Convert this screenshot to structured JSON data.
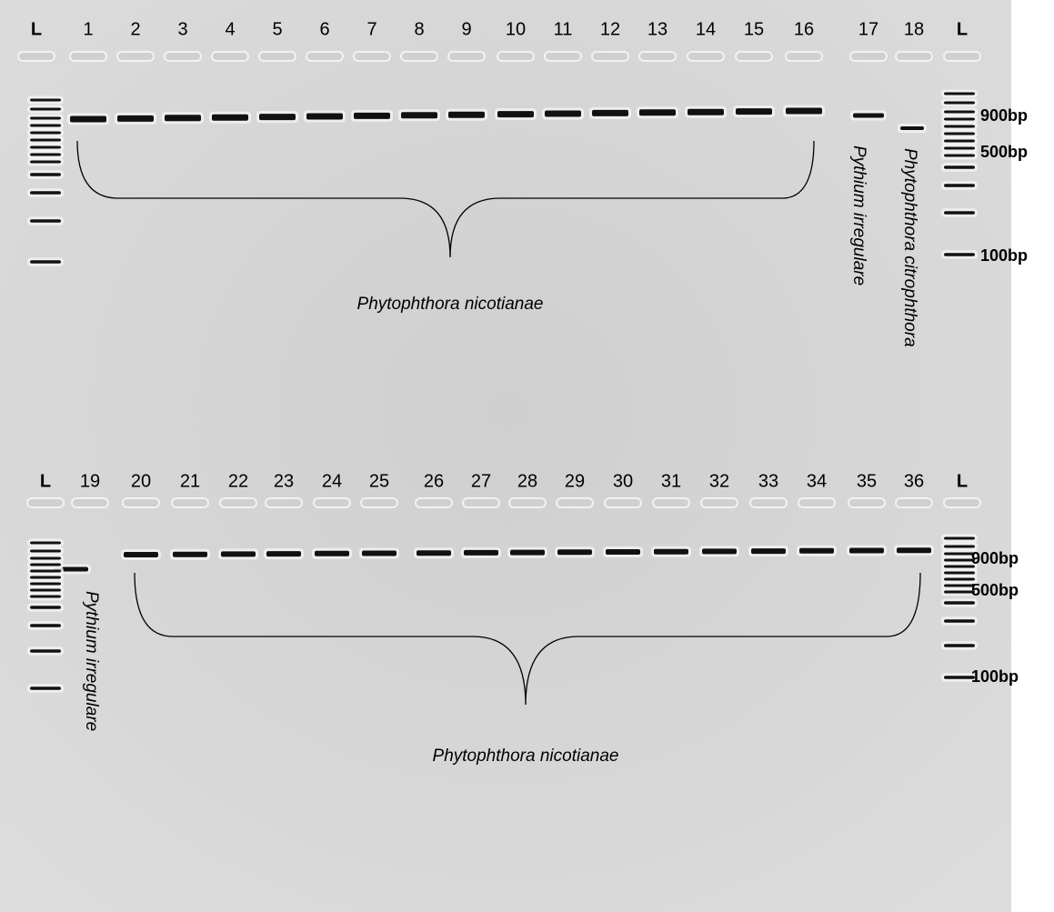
{
  "top": {
    "lanes": [
      "L",
      "1",
      "2",
      "3",
      "4",
      "5",
      "6",
      "7",
      "8",
      "9",
      "10",
      "11",
      "12",
      "13",
      "14",
      "15",
      "16",
      "17",
      "18",
      "L"
    ],
    "markers": [
      "900bp",
      "500bp",
      "100bp"
    ],
    "group_label": "Phytophthora nicotianae",
    "side_labels": [
      "Pythium irregulare",
      "Phytophthora citrophthora"
    ]
  },
  "bottom": {
    "lanes": [
      "L",
      "19",
      "20",
      "21",
      "22",
      "23",
      "24",
      "25",
      "26",
      "27",
      "28",
      "29",
      "30",
      "31",
      "32",
      "33",
      "34",
      "35",
      "36",
      "L"
    ],
    "markers": [
      "900bp",
      "500bp",
      "100bp"
    ],
    "group_label": "Phytophthora nicotianae",
    "side_labels": [
      "Pythium irregulare"
    ]
  }
}
